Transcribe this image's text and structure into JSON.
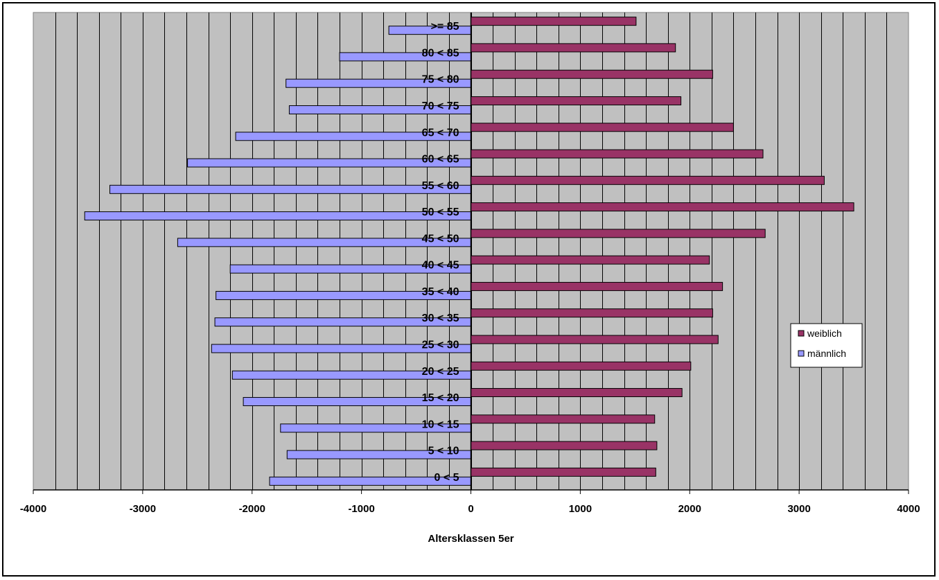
{
  "chart_data": {
    "type": "bar",
    "orientation": "horizontal",
    "title": "",
    "xlabel": "Altersklassen 5er",
    "ylabel": "",
    "xlim": [
      -4000,
      4000
    ],
    "x_ticks": [
      "-4000",
      "-3000",
      "-2000",
      "-1000",
      "0",
      "1000",
      "2000",
      "3000",
      "4000"
    ],
    "x_tick_values": [
      -4000,
      -3000,
      -2000,
      -1000,
      0,
      1000,
      2000,
      3000,
      4000
    ],
    "grid": true,
    "legend_position": "right",
    "categories": [
      "0 < 5",
      "5 < 10",
      "10 < 15",
      "15 < 20",
      "20 < 25",
      "25 < 30",
      "30 < 35",
      "35 < 40",
      "40 < 45",
      "45 < 50",
      "50 < 55",
      "55 < 60",
      "60 < 65",
      "65 < 70",
      "70 < 75",
      "75 < 80",
      "80 < 85",
      ">= 85"
    ],
    "series": [
      {
        "name": "weiblich",
        "color": "#993366",
        "values": [
          1690,
          1700,
          1680,
          1930,
          2010,
          2260,
          2210,
          2300,
          2180,
          2690,
          3500,
          3230,
          2670,
          2400,
          1920,
          2210,
          1870,
          1510
        ]
      },
      {
        "name": "männlich",
        "color": "#9999FF",
        "values": [
          -1840,
          -1680,
          -1740,
          -2080,
          -2180,
          -2370,
          -2340,
          -2330,
          -2200,
          -2680,
          -3530,
          -3300,
          -2590,
          -2150,
          -1660,
          -1690,
          -1200,
          -750
        ]
      }
    ],
    "plot_background": "#C0C0C0",
    "gridline_color": "#000000"
  }
}
